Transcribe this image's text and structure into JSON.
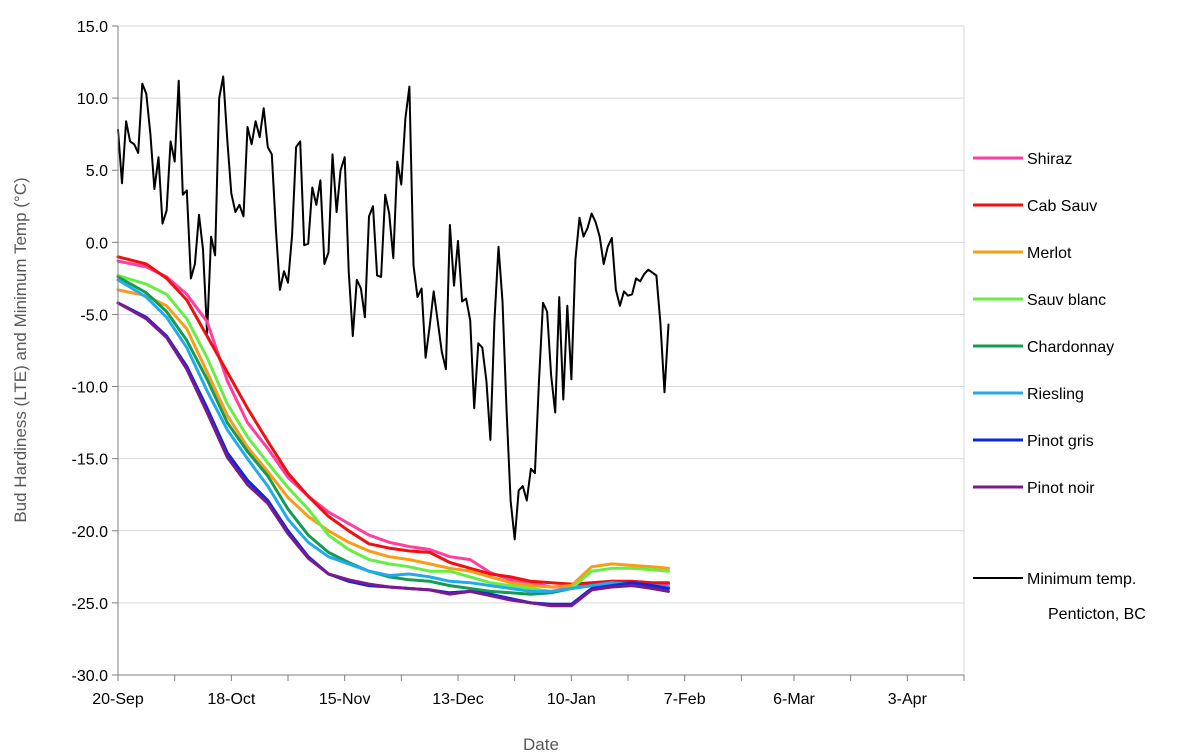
{
  "chart_data": {
    "type": "line",
    "title": "",
    "xlabel": "Date",
    "ylabel": "Bud Hardiness (LTE) and Minimum Temp (°C)",
    "ylim": [
      -30,
      15
    ],
    "yticks": [
      "-30.0",
      "-25.0",
      "-20.0",
      "-15.0",
      "-10.0",
      "-5.0",
      "0.0",
      "5.0",
      "10.0",
      "15.0"
    ],
    "xlim": [
      "2021-09-20",
      "2022-04-17"
    ],
    "xticks": [
      {
        "date": "2021-09-20",
        "label": "20-Sep"
      },
      {
        "date": "2021-10-18",
        "label": "18-Oct"
      },
      {
        "date": "2021-11-15",
        "label": "15-Nov"
      },
      {
        "date": "2021-12-13",
        "label": "13-Dec"
      },
      {
        "date": "2022-01-10",
        "label": "10-Jan"
      },
      {
        "date": "2022-02-07",
        "label": "7-Feb"
      },
      {
        "date": "2022-03-06",
        "label": "6-Mar"
      },
      {
        "date": "2022-04-03",
        "label": "3-Apr"
      }
    ],
    "grid": "horizontal",
    "legend_position": "right",
    "series": [
      {
        "name": "Shiraz",
        "color": "#ff3fa0",
        "x": [
          "2021-09-20",
          "2021-09-27",
          "2021-10-02",
          "2021-10-07",
          "2021-10-12",
          "2021-10-17",
          "2021-10-22",
          "2021-10-27",
          "2021-11-01",
          "2021-11-06",
          "2021-11-11",
          "2021-11-16",
          "2021-11-21",
          "2021-11-26",
          "2021-12-01",
          "2021-12-06",
          "2021-12-11",
          "2021-12-16",
          "2021-12-21",
          "2021-12-26",
          "2021-12-31",
          "2022-01-05",
          "2022-01-10",
          "2022-01-15",
          "2022-01-20",
          "2022-01-25",
          "2022-01-30",
          "2022-02-03"
        ],
        "y": [
          -1.3,
          -1.7,
          -2.4,
          -3.6,
          -5.5,
          -9.6,
          -12.5,
          -14.3,
          -16.3,
          -17.6,
          -18.7,
          -19.5,
          -20.3,
          -20.8,
          -21.1,
          -21.3,
          -21.8,
          -22.0,
          -22.9,
          -23.4,
          -23.6,
          -23.9,
          -23.9,
          -23.7,
          -23.5,
          -23.6,
          -23.7,
          -23.7
        ]
      },
      {
        "name": "Cab Sauv",
        "color": "#ee1111",
        "x": [
          "2021-09-20",
          "2021-09-27",
          "2021-10-02",
          "2021-10-07",
          "2021-10-12",
          "2021-10-17",
          "2021-10-22",
          "2021-10-27",
          "2021-11-01",
          "2021-11-06",
          "2021-11-11",
          "2021-11-16",
          "2021-11-21",
          "2021-11-26",
          "2021-12-01",
          "2021-12-06",
          "2021-12-11",
          "2021-12-16",
          "2021-12-21",
          "2021-12-26",
          "2021-12-31",
          "2022-01-05",
          "2022-01-10",
          "2022-01-15",
          "2022-01-20",
          "2022-01-25",
          "2022-01-30",
          "2022-02-03"
        ],
        "y": [
          -1.0,
          -1.5,
          -2.5,
          -4.0,
          -6.5,
          -9.0,
          -11.5,
          -13.8,
          -16.0,
          -17.6,
          -19.0,
          -20.0,
          -20.9,
          -21.2,
          -21.4,
          -21.5,
          -22.2,
          -22.6,
          -23.0,
          -23.2,
          -23.5,
          -23.6,
          -23.7,
          -23.6,
          -23.5,
          -23.5,
          -23.6,
          -23.6
        ]
      },
      {
        "name": "Merlot",
        "color": "#f99c18",
        "x": [
          "2021-09-20",
          "2021-09-27",
          "2021-10-02",
          "2021-10-07",
          "2021-10-12",
          "2021-10-17",
          "2021-10-22",
          "2021-10-27",
          "2021-11-01",
          "2021-11-06",
          "2021-11-11",
          "2021-11-16",
          "2021-11-21",
          "2021-11-26",
          "2021-12-01",
          "2021-12-06",
          "2021-12-11",
          "2021-12-16",
          "2021-12-21",
          "2021-12-26",
          "2021-12-31",
          "2022-01-05",
          "2022-01-10",
          "2022-01-15",
          "2022-01-20",
          "2022-01-25",
          "2022-01-30",
          "2022-02-03"
        ],
        "y": [
          -3.3,
          -3.7,
          -4.4,
          -6.0,
          -9.0,
          -12.0,
          -14.2,
          -15.9,
          -17.7,
          -19.0,
          -20.0,
          -20.8,
          -21.4,
          -21.8,
          -22.0,
          -22.3,
          -22.6,
          -22.8,
          -23.2,
          -23.6,
          -23.8,
          -23.9,
          -23.8,
          -22.5,
          -22.3,
          -22.4,
          -22.5,
          -22.6
        ]
      },
      {
        "name": "Sauv blanc",
        "color": "#66ee44",
        "x": [
          "2021-09-20",
          "2021-09-27",
          "2021-10-02",
          "2021-10-07",
          "2021-10-12",
          "2021-10-17",
          "2021-10-22",
          "2021-10-27",
          "2021-11-01",
          "2021-11-06",
          "2021-11-11",
          "2021-11-16",
          "2021-11-21",
          "2021-11-26",
          "2021-12-01",
          "2021-12-06",
          "2021-12-11",
          "2021-12-16",
          "2021-12-21",
          "2021-12-26",
          "2021-12-31",
          "2022-01-05",
          "2022-01-10",
          "2022-01-15",
          "2022-01-20",
          "2022-01-25",
          "2022-01-30",
          "2022-02-03"
        ],
        "y": [
          -2.3,
          -2.9,
          -3.6,
          -5.3,
          -8.0,
          -11.2,
          -13.5,
          -15.3,
          -17.0,
          -18.5,
          -20.3,
          -21.3,
          -22.0,
          -22.3,
          -22.5,
          -22.8,
          -22.8,
          -23.2,
          -23.6,
          -23.8,
          -24.0,
          -24.2,
          -24.0,
          -22.8,
          -22.6,
          -22.6,
          -22.7,
          -22.8
        ]
      },
      {
        "name": "Chardonnay",
        "color": "#139c52",
        "x": [
          "2021-09-20",
          "2021-09-27",
          "2021-10-02",
          "2021-10-07",
          "2021-10-12",
          "2021-10-17",
          "2021-10-22",
          "2021-10-27",
          "2021-11-01",
          "2021-11-06",
          "2021-11-11",
          "2021-11-16",
          "2021-11-21",
          "2021-11-26",
          "2021-12-01",
          "2021-12-06",
          "2021-12-11",
          "2021-12-16",
          "2021-12-21",
          "2021-12-26",
          "2021-12-31",
          "2022-01-05",
          "2022-01-10",
          "2022-01-15",
          "2022-01-20",
          "2022-01-25",
          "2022-01-30",
          "2022-02-03"
        ],
        "y": [
          -2.4,
          -3.5,
          -4.8,
          -6.8,
          -9.5,
          -12.5,
          -14.5,
          -16.2,
          -18.5,
          -20.3,
          -21.5,
          -22.2,
          -22.8,
          -23.2,
          -23.4,
          -23.5,
          -23.8,
          -24.0,
          -24.2,
          -24.3,
          -24.4,
          -24.3,
          -24.0,
          -23.8,
          -23.6,
          -23.8,
          -23.9,
          -23.9
        ]
      },
      {
        "name": "Riesling",
        "color": "#22aaee",
        "x": [
          "2021-09-20",
          "2021-09-27",
          "2021-10-02",
          "2021-10-07",
          "2021-10-12",
          "2021-10-17",
          "2021-10-22",
          "2021-10-27",
          "2021-11-01",
          "2021-11-06",
          "2021-11-11",
          "2021-11-16",
          "2021-11-21",
          "2021-11-26",
          "2021-12-01",
          "2021-12-06",
          "2021-12-11",
          "2021-12-16",
          "2021-12-21",
          "2021-12-26",
          "2021-12-31",
          "2022-01-05",
          "2022-01-10",
          "2022-01-15",
          "2022-01-20",
          "2022-01-25",
          "2022-01-30",
          "2022-02-03"
        ],
        "y": [
          -2.6,
          -3.8,
          -5.2,
          -7.3,
          -10.3,
          -13.0,
          -15.0,
          -16.9,
          -19.2,
          -20.8,
          -21.8,
          -22.3,
          -22.8,
          -23.1,
          -23.0,
          -23.2,
          -23.5,
          -23.6,
          -23.8,
          -24.0,
          -24.2,
          -24.2,
          -24.0,
          -23.8,
          -23.6,
          -23.7,
          -23.8,
          -23.9
        ]
      },
      {
        "name": "Pinot gris",
        "color": "#0b28e0",
        "x": [
          "2021-09-20",
          "2021-09-27",
          "2021-10-02",
          "2021-10-07",
          "2021-10-12",
          "2021-10-17",
          "2021-10-22",
          "2021-10-27",
          "2021-11-01",
          "2021-11-06",
          "2021-11-11",
          "2021-11-16",
          "2021-11-21",
          "2021-11-26",
          "2021-12-01",
          "2021-12-06",
          "2021-12-11",
          "2021-12-16",
          "2021-12-21",
          "2021-12-26",
          "2021-12-31",
          "2022-01-05",
          "2022-01-10",
          "2022-01-15",
          "2022-01-20",
          "2022-01-25",
          "2022-01-30",
          "2022-02-03"
        ],
        "y": [
          -4.2,
          -5.2,
          -6.5,
          -8.6,
          -11.5,
          -14.6,
          -16.5,
          -17.9,
          -20.0,
          -21.8,
          -23.0,
          -23.5,
          -23.8,
          -23.9,
          -24.0,
          -24.1,
          -24.3,
          -24.2,
          -24.4,
          -24.7,
          -25.0,
          -25.1,
          -25.1,
          -24.0,
          -23.8,
          -23.6,
          -23.8,
          -24.0
        ]
      },
      {
        "name": "Pinot noir",
        "color": "#7a1a8c",
        "x": [
          "2021-09-20",
          "2021-09-27",
          "2021-10-02",
          "2021-10-07",
          "2021-10-12",
          "2021-10-17",
          "2021-10-22",
          "2021-10-27",
          "2021-11-01",
          "2021-11-06",
          "2021-11-11",
          "2021-11-16",
          "2021-11-21",
          "2021-11-26",
          "2021-12-01",
          "2021-12-06",
          "2021-12-11",
          "2021-12-16",
          "2021-12-21",
          "2021-12-26",
          "2021-12-31",
          "2022-01-05",
          "2022-01-10",
          "2022-01-15",
          "2022-01-20",
          "2022-01-25",
          "2022-01-30",
          "2022-02-03"
        ],
        "y": [
          -4.2,
          -5.3,
          -6.6,
          -8.8,
          -11.8,
          -14.9,
          -16.8,
          -18.1,
          -20.2,
          -21.9,
          -23.0,
          -23.4,
          -23.7,
          -23.9,
          -24.0,
          -24.1,
          -24.4,
          -24.2,
          -24.5,
          -24.8,
          -25.0,
          -25.2,
          -25.2,
          -24.1,
          -23.9,
          -23.8,
          -24.0,
          -24.2
        ]
      },
      {
        "name": "Minimum temp.",
        "name2": "Penticton, BC",
        "color": "#000000",
        "x": [
          "2021-09-20",
          "2021-09-21",
          "2021-09-22",
          "2021-09-23",
          "2021-09-24",
          "2021-09-25",
          "2021-09-26",
          "2021-09-27",
          "2021-09-28",
          "2021-09-29",
          "2021-09-30",
          "2021-10-01",
          "2021-10-02",
          "2021-10-03",
          "2021-10-04",
          "2021-10-05",
          "2021-10-06",
          "2021-10-07",
          "2021-10-08",
          "2021-10-09",
          "2021-10-10",
          "2021-10-11",
          "2021-10-12",
          "2021-10-13",
          "2021-10-14",
          "2021-10-15",
          "2021-10-16",
          "2021-10-17",
          "2021-10-18",
          "2021-10-19",
          "2021-10-20",
          "2021-10-21",
          "2021-10-22",
          "2021-10-23",
          "2021-10-24",
          "2021-10-25",
          "2021-10-26",
          "2021-10-27",
          "2021-10-28",
          "2021-10-29",
          "2021-10-30",
          "2021-10-31",
          "2021-11-01",
          "2021-11-02",
          "2021-11-03",
          "2021-11-04",
          "2021-11-05",
          "2021-11-06",
          "2021-11-07",
          "2021-11-08",
          "2021-11-09",
          "2021-11-10",
          "2021-11-11",
          "2021-11-12",
          "2021-11-13",
          "2021-11-14",
          "2021-11-15",
          "2021-11-16",
          "2021-11-17",
          "2021-11-18",
          "2021-11-19",
          "2021-11-20",
          "2021-11-21",
          "2021-11-22",
          "2021-11-23",
          "2021-11-24",
          "2021-11-25",
          "2021-11-26",
          "2021-11-27",
          "2021-11-28",
          "2021-11-29",
          "2021-11-30",
          "2021-12-01",
          "2021-12-02",
          "2021-12-03",
          "2021-12-04",
          "2021-12-05",
          "2021-12-06",
          "2021-12-07",
          "2021-12-08",
          "2021-12-09",
          "2021-12-10",
          "2021-12-11",
          "2021-12-12",
          "2021-12-13",
          "2021-12-14",
          "2021-12-15",
          "2021-12-16",
          "2021-12-17",
          "2021-12-18",
          "2021-12-19",
          "2021-12-20",
          "2021-12-21",
          "2021-12-22",
          "2021-12-23",
          "2021-12-24",
          "2021-12-25",
          "2021-12-26",
          "2021-12-27",
          "2021-12-28",
          "2021-12-29",
          "2021-12-30",
          "2021-12-31",
          "2022-01-01",
          "2022-01-02",
          "2022-01-03",
          "2022-01-04",
          "2022-01-05",
          "2022-01-06",
          "2022-01-07",
          "2022-01-08",
          "2022-01-09",
          "2022-01-10",
          "2022-01-11",
          "2022-01-12",
          "2022-01-13",
          "2022-01-14",
          "2022-01-15",
          "2022-01-16",
          "2022-01-17",
          "2022-01-18",
          "2022-01-19",
          "2022-01-20",
          "2022-01-21",
          "2022-01-22",
          "2022-01-23",
          "2022-01-24",
          "2022-01-25",
          "2022-01-26",
          "2022-01-27",
          "2022-01-28",
          "2022-01-29",
          "2022-01-30",
          "2022-01-31",
          "2022-02-01",
          "2022-02-02",
          "2022-02-03"
        ],
        "y": [
          7.8,
          4.1,
          8.4,
          7.0,
          6.8,
          6.2,
          11.0,
          10.3,
          7.5,
          3.7,
          5.9,
          1.3,
          2.2,
          7.0,
          5.6,
          11.2,
          3.3,
          3.6,
          -2.5,
          -1.5,
          1.9,
          -0.5,
          -6.3,
          0.4,
          -0.9,
          10.0,
          11.5,
          7.1,
          3.4,
          2.1,
          2.6,
          1.8,
          8.0,
          6.8,
          8.4,
          7.3,
          9.3,
          6.6,
          6.1,
          0.9,
          -3.3,
          -2.0,
          -2.8,
          0.5,
          6.6,
          7.0,
          -0.2,
          -0.1,
          3.8,
          2.6,
          4.3,
          -1.5,
          -0.7,
          6.1,
          2.1,
          5.0,
          5.9,
          -2.0,
          -6.5,
          -2.6,
          -3.2,
          -5.2,
          1.8,
          2.5,
          -2.3,
          -2.4,
          3.3,
          2.0,
          -1.1,
          5.6,
          4.0,
          8.6,
          10.8,
          -1.6,
          -3.8,
          -3.2,
          -8.0,
          -5.8,
          -3.4,
          -5.5,
          -7.6,
          -8.8,
          1.2,
          -3.0,
          0.1,
          -4.1,
          -3.9,
          -5.4,
          -11.5,
          -7.0,
          -7.3,
          -9.6,
          -13.7,
          -5.5,
          -0.3,
          -4.1,
          -11.7,
          -17.9,
          -20.6,
          -17.2,
          -16.9,
          -17.9,
          -15.7,
          -16.0,
          -9.6,
          -4.2,
          -4.8,
          -9.2,
          -11.8,
          -3.8,
          -10.9,
          -4.4,
          -9.5,
          -1.2,
          1.7,
          0.4,
          1.0,
          2.0,
          1.4,
          0.4,
          -1.5,
          -0.3,
          0.3,
          -3.3,
          -4.4,
          -3.4,
          -3.7,
          -3.6,
          -2.5,
          -2.7,
          -2.2,
          -1.9,
          -2.1,
          -2.3,
          -5.6,
          -10.4,
          -5.7
        ]
      }
    ]
  }
}
